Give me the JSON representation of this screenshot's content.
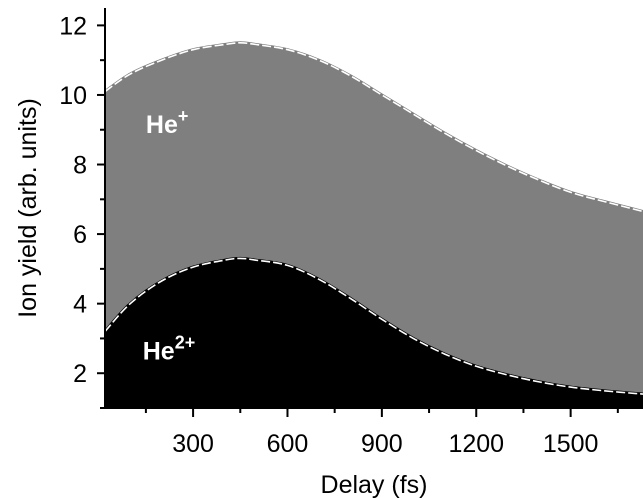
{
  "chart_data": {
    "type": "area",
    "xlabel": "Delay (fs)",
    "ylabel": "Ion yield (arb. units)",
    "xlim": [
      20,
      1730
    ],
    "ylim": [
      1.0,
      12.5
    ],
    "xticks": [
      300,
      600,
      900,
      1200,
      1500
    ],
    "xtick_labels": [
      "300",
      "600",
      "900",
      "1200",
      "1500"
    ],
    "yticks": [
      2,
      4,
      6,
      8,
      10,
      12
    ],
    "ytick_labels": [
      "2",
      "4",
      "6",
      "8",
      "10",
      "12"
    ],
    "grid": false,
    "legend": "none",
    "annotations": [
      {
        "label": "He",
        "superscript": "+",
        "x": 150,
        "y": 8.9
      },
      {
        "label": "He",
        "superscript": "2+",
        "x": 140,
        "y": 2.4
      }
    ],
    "x": [
      20,
      100,
      200,
      300,
      400,
      450,
      500,
      600,
      700,
      800,
      900,
      1000,
      1100,
      1200,
      1300,
      1400,
      1500,
      1600,
      1730
    ],
    "series": [
      {
        "color": "#7f7f7f",
        "values": [
          10.1,
          10.6,
          11.0,
          11.3,
          11.45,
          11.5,
          11.45,
          11.3,
          11.0,
          10.55,
          10.0,
          9.45,
          8.9,
          8.4,
          7.95,
          7.55,
          7.2,
          6.95,
          6.65
        ]
      },
      {
        "color": "#000000",
        "values": [
          3.2,
          4.0,
          4.65,
          5.05,
          5.25,
          5.3,
          5.25,
          5.1,
          4.7,
          4.15,
          3.55,
          3.0,
          2.55,
          2.2,
          1.95,
          1.75,
          1.6,
          1.5,
          1.4
        ]
      }
    ]
  }
}
